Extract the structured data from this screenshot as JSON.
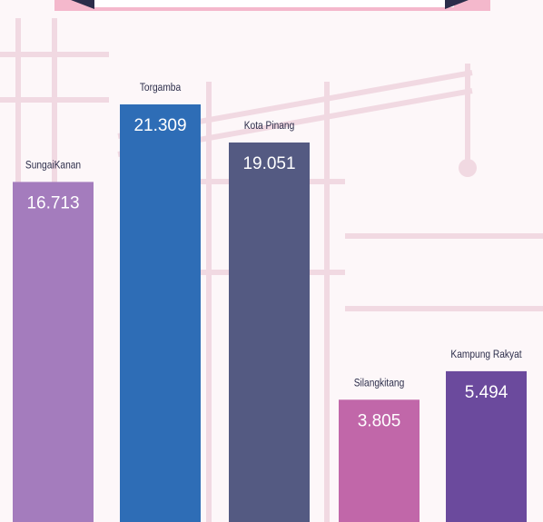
{
  "chart_data": {
    "type": "bar",
    "categories": [
      "SungaiKanan",
      "Torgamba",
      "Kota Pinang",
      "Silangkitang",
      "Kampung Rakyat"
    ],
    "values": [
      16713,
      21309,
      19051,
      3805,
      5494
    ],
    "value_labels": [
      "16.713",
      "21.309",
      "19.051",
      "3.805",
      "5.494"
    ],
    "colors": [
      "#a47cbd",
      "#2e6db6",
      "#545a82",
      "#c167a9",
      "#6b4a9d"
    ]
  }
}
